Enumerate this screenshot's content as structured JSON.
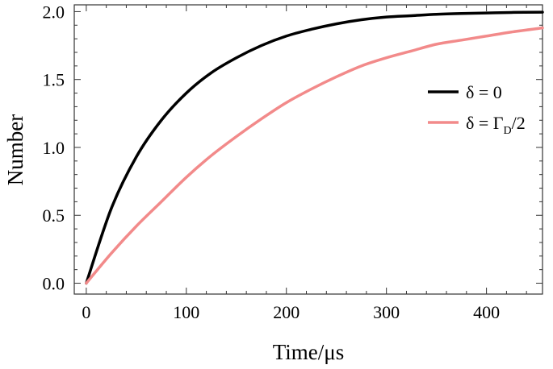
{
  "chart_data": {
    "type": "line",
    "xlabel": "Time/μs",
    "ylabel": "Number",
    "xlim": [
      -12,
      456
    ],
    "ylim": [
      -0.08,
      2.05
    ],
    "x_major_ticks": [
      0,
      100,
      200,
      300,
      400
    ],
    "y_major_ticks": [
      0.0,
      0.5,
      1.0,
      1.5,
      2.0
    ],
    "x_tick_labels": [
      "0",
      "100",
      "200",
      "300",
      "400"
    ],
    "y_tick_labels": [
      "0.0",
      "0.5",
      "1.0",
      "1.5",
      "2.0"
    ],
    "grid": false,
    "legend_position": "right",
    "x": [
      0,
      25,
      50,
      75,
      100,
      125,
      150,
      175,
      200,
      225,
      250,
      275,
      300,
      325,
      350,
      375,
      400,
      425,
      456
    ],
    "series": [
      {
        "name": "δ = 0",
        "color": "#000000",
        "values": [
          0.0,
          0.55,
          0.93,
          1.2,
          1.4,
          1.55,
          1.66,
          1.75,
          1.82,
          1.87,
          1.91,
          1.94,
          1.96,
          1.97,
          1.98,
          1.986,
          1.99,
          1.994,
          1.996
        ]
      },
      {
        "name": "δ = Γ",
        "name_subscript": "D",
        "name_suffix": "/2",
        "color": "#f28a8a",
        "values": [
          0.0,
          0.22,
          0.42,
          0.6,
          0.78,
          0.94,
          1.08,
          1.21,
          1.33,
          1.43,
          1.52,
          1.6,
          1.66,
          1.71,
          1.76,
          1.79,
          1.82,
          1.85,
          1.88
        ]
      }
    ]
  }
}
